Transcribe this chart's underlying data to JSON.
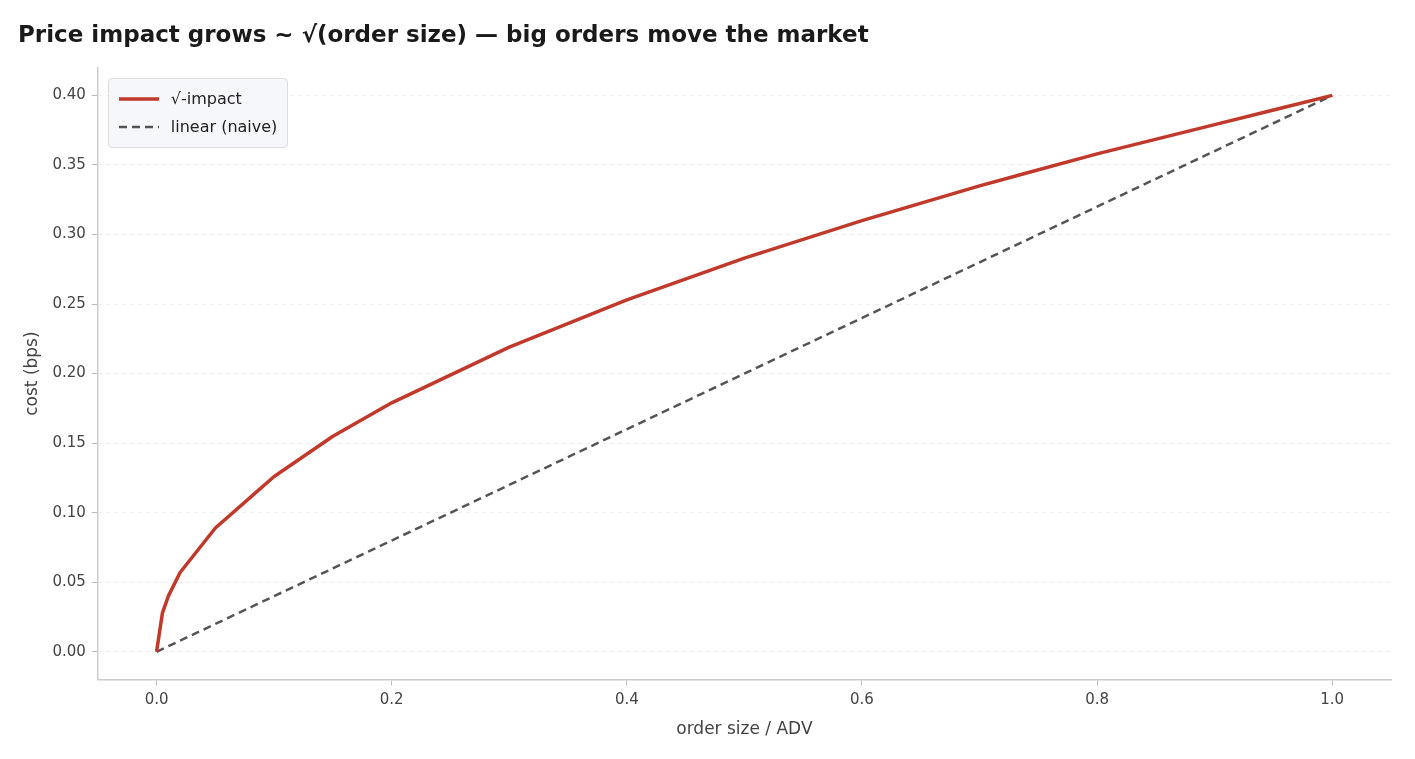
{
  "chart_data": {
    "type": "line",
    "title": "Price impact grows ~ √(order size) — big orders move the market",
    "xlabel": "order size / ADV",
    "ylabel": "cost (bps)",
    "series": [
      {
        "name": "√-impact",
        "color": "#c0392b",
        "line_style": "solid",
        "x": [
          0,
          0.005,
          0.01,
          0.02,
          0.05,
          0.1,
          0.15,
          0.2,
          0.3,
          0.4,
          0.5,
          0.6,
          0.7,
          0.8,
          0.9,
          1.0
        ],
        "values": [
          0,
          0.028,
          0.04,
          0.057,
          0.089,
          0.126,
          0.155,
          0.179,
          0.219,
          0.253,
          0.283,
          0.31,
          0.335,
          0.358,
          0.379,
          0.4
        ]
      },
      {
        "name": "linear (naive)",
        "color": "#555555",
        "line_style": "dashed",
        "x": [
          0,
          1.0
        ],
        "values": [
          0,
          0.4
        ]
      }
    ],
    "xlim": [
      -0.05,
      1.05
    ],
    "ylim": [
      -0.02,
      0.42
    ],
    "xticks": [
      {
        "value": 0,
        "label": "0.0"
      },
      {
        "value": 0.2,
        "label": "0.2"
      },
      {
        "value": 0.4,
        "label": "0.4"
      },
      {
        "value": 0.6,
        "label": "0.6"
      },
      {
        "value": 0.8,
        "label": "0.8"
      },
      {
        "value": 1,
        "label": "1.0"
      }
    ],
    "yticks": [
      {
        "value": 0,
        "label": "0.00"
      },
      0.05,
      {
        "value": 0.1,
        "label": "0.10"
      },
      0.15,
      {
        "value": 0.2,
        "label": "0.20"
      },
      0.25,
      {
        "value": 0.3,
        "label": "0.30"
      },
      0.35,
      {
        "value": 0.4,
        "label": "0.40"
      }
    ],
    "grid": "y",
    "legend": "top left",
    "marker": "none"
  }
}
